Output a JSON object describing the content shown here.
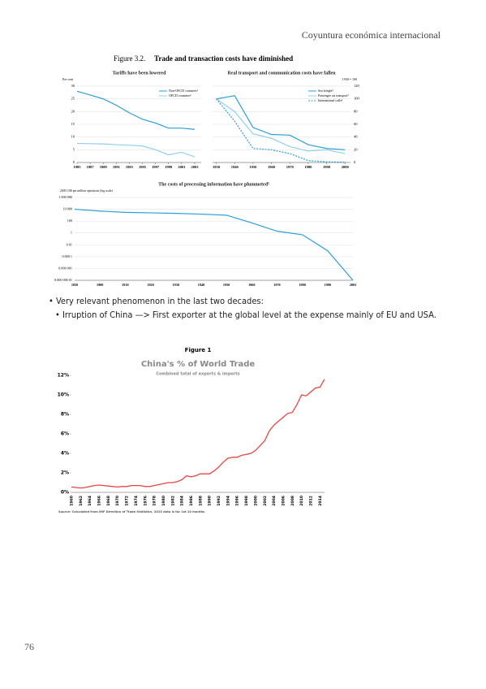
{
  "header": "Coyuntura económica internacional",
  "figure_label": "Figure 3.2.",
  "figure_title": "Trade and transaction costs have diminished",
  "chart_data": [
    {
      "type": "line",
      "title": "Tariffs have been lowered",
      "ylabel": "Per cent",
      "x": [
        1985,
        1987,
        1989,
        1991,
        1993,
        1995,
        1997,
        1999,
        2001,
        2003
      ],
      "xlim": [
        1985,
        2004
      ],
      "xticks": [
        1985,
        1987,
        1989,
        1991,
        1993,
        1995,
        1997,
        1999,
        2001,
        2003
      ],
      "ylim": [
        0,
        30
      ],
      "yticks": [
        0,
        5,
        10,
        15,
        20,
        25,
        30
      ],
      "grid": true,
      "legend": "upper right",
      "series": [
        {
          "name": "Non-OECD countries¹",
          "color": "#2a9fd6",
          "values": [
            28,
            26.5,
            25,
            22.5,
            19.5,
            17,
            15.5,
            13.5,
            13.5,
            13
          ]
        },
        {
          "name": "OECD countries¹",
          "color": "#8fd0ee",
          "values": [
            7.5,
            7.4,
            7.3,
            7,
            6.8,
            6.5,
            5,
            3,
            4,
            2.2
          ]
        }
      ]
    },
    {
      "type": "line",
      "title": "Real transport and communication costs have fallen",
      "ylabel": "1930 = 100",
      "x": [
        1930,
        1940,
        1950,
        1960,
        1970,
        1980,
        1990,
        2000
      ],
      "xlim": [
        1928,
        2003
      ],
      "xticks": [
        1930,
        1940,
        1950,
        1960,
        1970,
        1980,
        1990,
        2000
      ],
      "ylim": [
        0,
        120
      ],
      "yticks": [
        0,
        20,
        40,
        60,
        80,
        100,
        120
      ],
      "grid": true,
      "legend": "upper right",
      "series": [
        {
          "name": "Sea freight²",
          "color": "#2a9fd6",
          "values": [
            100,
            105,
            55,
            44,
            43,
            28,
            22,
            20
          ]
        },
        {
          "name": "Passenger air transport³",
          "color": "#8fd0ee",
          "values": [
            100,
            80,
            45,
            38,
            25,
            18,
            20,
            14
          ]
        },
        {
          "name": "International calls⁴",
          "color": "#2a9fd6",
          "dashed": true,
          "values": [
            100,
            65,
            22,
            20,
            14,
            3,
            1,
            0.5
          ]
        }
      ]
    },
    {
      "type": "line",
      "title": "The costs of processing information have plummeted⁵",
      "ylabel": "2005 US$ per million operations (log scale)",
      "log_scale": true,
      "grid": true,
      "categories": [
        "1850",
        "1900",
        "1910",
        "1920",
        "1930",
        "1940",
        "1950",
        "1960",
        "1970",
        "1980",
        "1990",
        "2003"
      ],
      "values": [
        10000,
        5000,
        3000,
        2500,
        2000,
        1500,
        1000,
        50,
        2,
        0.5,
        0.001,
        1e-08
      ],
      "color": "#2a9fd6",
      "ylim": [
        1e-08,
        1000000
      ],
      "yticks": [
        {
          "value": 1e-08,
          "label": "0.000 000 01"
        },
        {
          "value": 1e-06,
          "label": "0.000 001"
        },
        {
          "value": 0.0001,
          "label": "0.000 1"
        },
        0.01,
        1,
        100,
        {
          "value": 10000,
          "label": "10 000"
        },
        {
          "value": 1000000,
          "label": "1 000 000"
        }
      ]
    },
    {
      "type": "line",
      "label": "Figure 1",
      "title": "China's % of World Trade",
      "subtitle": "Combined total of exports & imports",
      "source": "Source: Calculated from IMF Direction of Trade Statistics. 2015 data is for 1st 10 months",
      "categories": [
        "1960",
        null,
        "1962",
        null,
        "1964",
        null,
        "1966",
        null,
        "1968",
        null,
        "1970",
        null,
        "1972",
        null,
        "1974",
        null,
        "1976",
        null,
        "1978",
        null,
        "1980",
        null,
        "1982",
        null,
        "1984",
        null,
        "1986",
        null,
        "1988",
        null,
        "1990",
        null,
        "1992",
        null,
        "1994",
        null,
        "1996",
        null,
        "1998",
        null,
        "2000",
        null,
        "2002",
        null,
        "2004",
        null,
        "2006",
        null,
        "2008",
        null,
        "2010",
        null,
        "2012",
        null,
        "2014",
        null
      ],
      "values": [
        0.55,
        0.5,
        0.45,
        0.5,
        0.6,
        0.7,
        0.75,
        0.7,
        0.65,
        0.6,
        0.55,
        0.6,
        0.6,
        0.7,
        0.7,
        0.7,
        0.6,
        0.6,
        0.7,
        0.8,
        0.9,
        1.0,
        1.0,
        1.1,
        1.3,
        1.7,
        1.6,
        1.7,
        1.9,
        1.9,
        1.9,
        2.2,
        2.6,
        3.1,
        3.5,
        3.6,
        3.6,
        3.8,
        3.9,
        4.0,
        4.3,
        4.8,
        5.3,
        6.3,
        6.9,
        7.3,
        7.7,
        8.1,
        8.2,
        9.0,
        10.0,
        9.9,
        10.3,
        10.7,
        10.8,
        11.6
      ],
      "color": "#e84545",
      "grid": false,
      "ylim": [
        0,
        12
      ],
      "yticks": [
        {
          "value": 0,
          "label": "0%"
        },
        {
          "value": 2,
          "label": "2%"
        },
        {
          "value": 4,
          "label": "4%"
        },
        {
          "value": 6,
          "label": "6%"
        },
        {
          "value": 8,
          "label": "8%"
        },
        {
          "value": 10,
          "label": "10%"
        },
        {
          "value": 12,
          "label": "12%"
        }
      ]
    }
  ],
  "bullets": [
    {
      "text": "Very relevant phenomenon in the last two decades:",
      "sub": [
        "Irruption of China —> First exporter at the global level at the expense mainly of EU and USA."
      ]
    }
  ],
  "page_number": "76"
}
